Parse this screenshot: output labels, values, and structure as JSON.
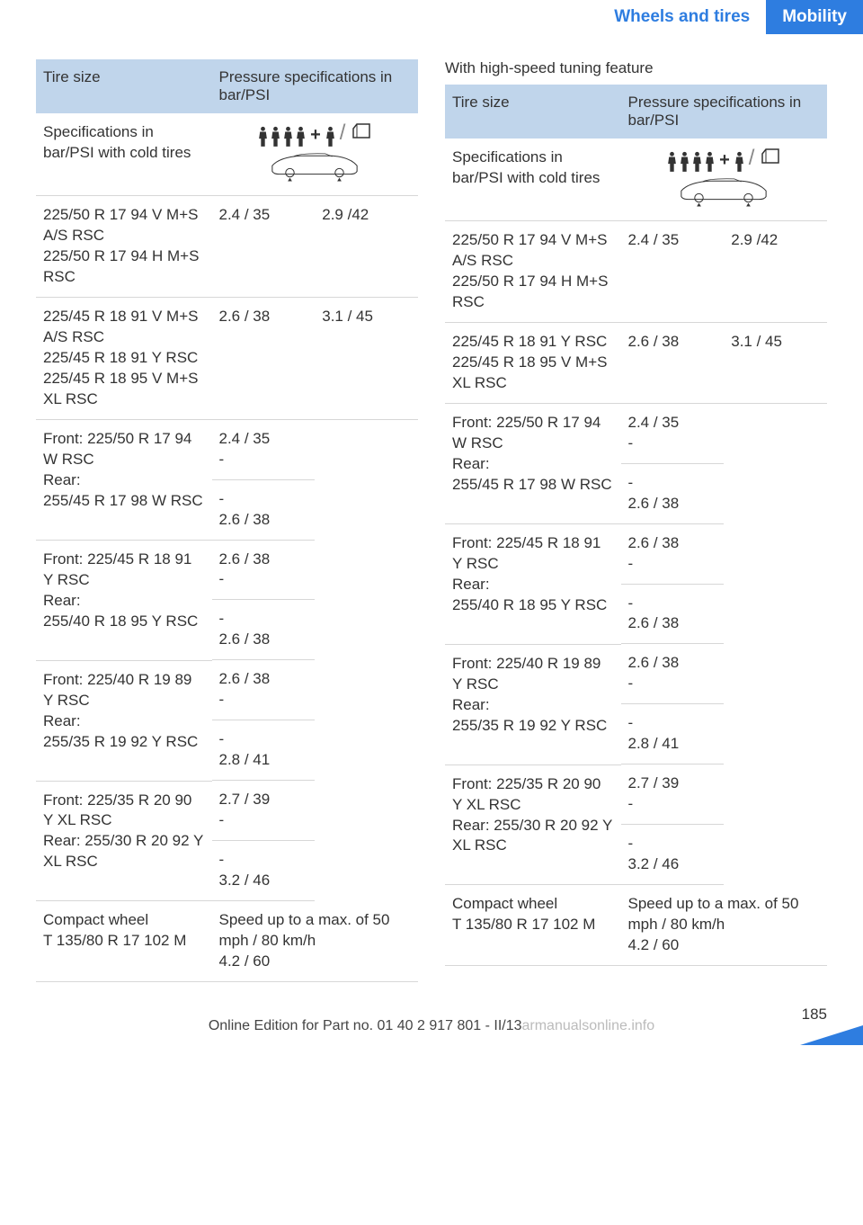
{
  "header": {
    "section": "Wheels and tires",
    "category": "Mobility"
  },
  "tables": {
    "left": {
      "headers": {
        "col1": "Tire size",
        "col2": "Pressure specifications in bar/PSI"
      },
      "specRow": "Specifications in bar/PSI with cold tires",
      "rows": [
        {
          "size": "225/50 R 17 94 V M+S A/S RSC\n225/50 R 17 94 H M+S RSC",
          "p1": "2.4 / 35",
          "p2": "2.9 /42"
        },
        {
          "size": "225/45 R 18 91 V M+S A/S RSC\n225/45 R 18 91 Y RSC\n225/45 R 18 95 V M+S XL RSC",
          "p1": "2.6 / 38",
          "p2": "3.1 / 45"
        },
        {
          "size": "Front: 225/50 R 17 94 W RSC\nRear:\n255/45 R 17 98 W RSC",
          "p1a": "2.4 / 35",
          "p1b": "-",
          "p2a": "-",
          "p2b": "2.6 / 38"
        },
        {
          "size": "Front: 225/45 R 18 91 Y RSC\nRear:\n255/40 R 18 95 Y RSC",
          "p1a": "2.6 / 38",
          "p1b": "-",
          "p2a": "-",
          "p2b": "2.6 / 38"
        },
        {
          "size": "Front: 225/40 R 19 89 Y RSC\nRear:\n255/35 R 19 92 Y RSC",
          "p1a": "2.6 / 38",
          "p1b": "-",
          "p2a": "-",
          "p2b": "2.8 / 41"
        },
        {
          "size": "Front: 225/35 R 20 90 Y XL RSC\nRear: 255/30 R 20 92 Y XL RSC",
          "p1a": "2.7 / 39",
          "p1b": "-",
          "p2a": "-",
          "p2b": "3.2 / 46"
        },
        {
          "size": "Compact wheel\nT 135/80 R 17 102 M",
          "note": "Speed up to a max. of 50 mph / 80 km/h\n4.2 / 60"
        }
      ]
    },
    "right": {
      "title": "With high-speed tuning feature",
      "headers": {
        "col1": "Tire size",
        "col2": "Pressure specifications in bar/PSI"
      },
      "specRow": "Specifications in bar/PSI with cold tires",
      "rows": [
        {
          "size": "225/50 R 17 94 V M+S A/S RSC\n225/50 R 17 94 H M+S RSC",
          "p1": "2.4 / 35",
          "p2": "2.9 /42"
        },
        {
          "size": "225/45 R 18 91 Y RSC\n225/45 R 18 95 V M+S XL RSC",
          "p1": "2.6 / 38",
          "p2": "3.1 / 45"
        },
        {
          "size": "Front: 225/50 R 17 94 W RSC\nRear:\n255/45 R 17 98 W RSC",
          "p1a": "2.4 / 35",
          "p1b": "-",
          "p2a": "-",
          "p2b": "2.6 / 38"
        },
        {
          "size": "Front: 225/45 R 18 91 Y RSC\nRear:\n255/40 R 18 95 Y RSC",
          "p1a": "2.6 / 38",
          "p1b": "-",
          "p2a": "-",
          "p2b": "2.6 / 38"
        },
        {
          "size": "Front: 225/40 R 19 89 Y RSC\nRear:\n255/35 R 19 92 Y RSC",
          "p1a": "2.6 / 38",
          "p1b": "-",
          "p2a": "-",
          "p2b": "2.8 / 41"
        },
        {
          "size": "Front: 225/35 R 20 90 Y XL RSC\nRear: 255/30 R 20 92 Y XL RSC",
          "p1a": "2.7 / 39",
          "p1b": "-",
          "p2a": "-",
          "p2b": "3.2 / 46"
        },
        {
          "size": "Compact wheel\nT 135/80 R 17 102 M",
          "note": "Speed up to a max. of 50 mph / 80 km/h\n4.2 / 60"
        }
      ]
    }
  },
  "footer": {
    "text": "Online Edition for Part no. 01 40 2 917 801 - II/13",
    "watermark": "armanualsonline.info"
  },
  "page_num": "185",
  "colors": {
    "accent_blue": "#2e7de0",
    "header_bg": "#c0d5eb",
    "border": "#d7d7d7"
  }
}
